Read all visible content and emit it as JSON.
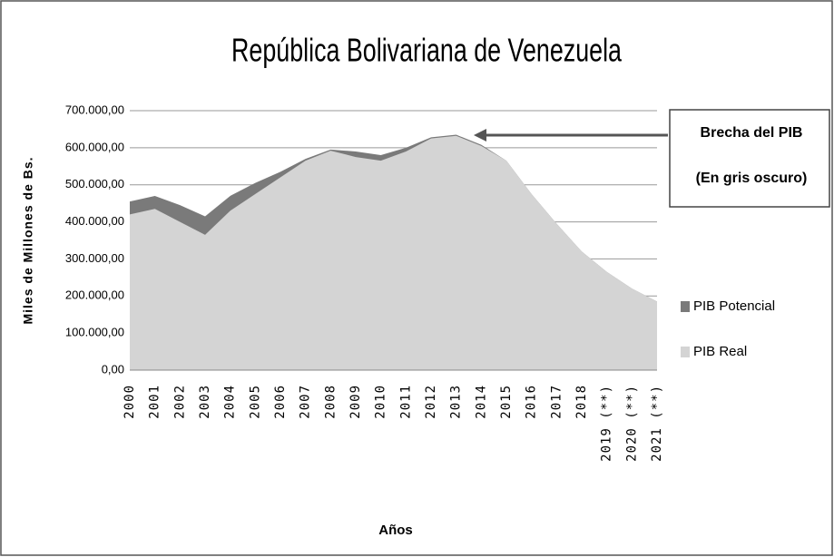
{
  "chart_data": {
    "type": "area",
    "title": "República Bolivariana de Venezuela",
    "x_label": "Años",
    "y_label": "Miles de Millones de Bs.",
    "annotations": [
      "Brecha del PIB",
      "(En gris oscuro)"
    ],
    "categories": [
      "2000",
      "2001",
      "2002",
      "2003",
      "2004",
      "2005",
      "2006",
      "2007",
      "2008",
      "2009",
      "2010",
      "2011",
      "2012",
      "2013",
      "2014",
      "2015",
      "2016",
      "2017",
      "2018",
      "2019 (**)",
      "2020 (**)",
      "2021 (**)"
    ],
    "series": [
      {
        "name": "PIB Potencial",
        "color": "#7a7a7a",
        "values": [
          455000,
          470000,
          445000,
          415000,
          470000,
          505000,
          535000,
          570000,
          595000,
          590000,
          580000,
          600000,
          628000,
          635000,
          608000,
          565000,
          475000,
          395000,
          320000,
          265000,
          220000,
          185000
        ]
      },
      {
        "name": "PIB Real",
        "color": "#d4d4d4",
        "values": [
          420000,
          435000,
          400000,
          365000,
          430000,
          475000,
          520000,
          565000,
          592000,
          575000,
          565000,
          590000,
          625000,
          632000,
          605000,
          565000,
          475000,
          395000,
          320000,
          265000,
          220000,
          185000
        ]
      }
    ],
    "ylim": [
      0,
      700000
    ],
    "yticks": [
      {
        "value": 0,
        "label": "0,00"
      },
      {
        "value": 100000,
        "label": "100.000,00"
      },
      {
        "value": 200000,
        "label": "200.000,00"
      },
      {
        "value": 300000,
        "label": "300.000,00"
      },
      {
        "value": 400000,
        "label": "400.000,00"
      },
      {
        "value": 500000,
        "label": "500.000,00"
      },
      {
        "value": 600000,
        "label": "600.000,00"
      },
      {
        "value": 700000,
        "label": "700.000,00"
      }
    ],
    "grid": true,
    "legend": "right"
  }
}
